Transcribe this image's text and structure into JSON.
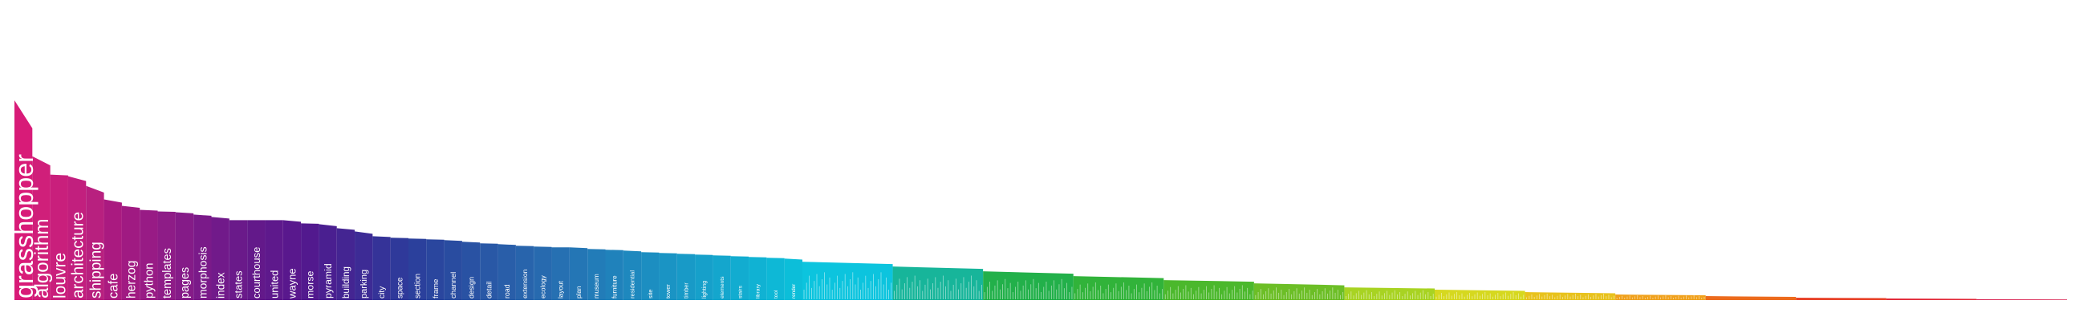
{
  "chart_data": {
    "type": "area",
    "title": "",
    "xlabel": "",
    "ylabel": "",
    "ylim": [
      0,
      250
    ],
    "grid": false,
    "legend": "none",
    "labeled_words": [
      {
        "word": "grasshopper",
        "value": 250,
        "color": "#d81b78"
      },
      {
        "word": "algorithm",
        "value": 180,
        "color": "#d01f7a"
      },
      {
        "word": "louvre",
        "value": 157,
        "color": "#c91f7c"
      },
      {
        "word": "architecture",
        "value": 155,
        "color": "#c21f7e"
      },
      {
        "word": "shipping",
        "value": 143,
        "color": "#b8207f"
      },
      {
        "word": "cafe",
        "value": 126,
        "color": "#aa1a80"
      },
      {
        "word": "herzog",
        "value": 118,
        "color": "#a01a82"
      },
      {
        "word": "python",
        "value": 113,
        "color": "#981b85"
      },
      {
        "word": "templates",
        "value": 111,
        "color": "#8e1c87"
      },
      {
        "word": "pages",
        "value": 110,
        "color": "#851b88"
      },
      {
        "word": "morphosis",
        "value": 107,
        "color": "#7a1a89"
      },
      {
        "word": "index",
        "value": 104,
        "color": "#711a8a"
      },
      {
        "word": "states",
        "value": 100,
        "color": "#6a1a8a"
      },
      {
        "word": "courthouse",
        "value": 100,
        "color": "#63198a"
      },
      {
        "word": "united",
        "value": 100,
        "color": "#5e198c"
      },
      {
        "word": "wayne",
        "value": 100,
        "color": "#59188d"
      },
      {
        "word": "morse",
        "value": 96,
        "color": "#52198e"
      },
      {
        "word": "pyramid",
        "value": 95,
        "color": "#4a1f90"
      },
      {
        "word": "building",
        "value": 90,
        "color": "#442592"
      },
      {
        "word": "parking",
        "value": 86,
        "color": "#3d2b95"
      },
      {
        "word": "city",
        "value": 80,
        "color": "#353398"
      },
      {
        "word": "space",
        "value": 78,
        "color": "#2f399a"
      },
      {
        "word": "section",
        "value": 77,
        "color": "#2b409c"
      },
      {
        "word": "frame",
        "value": 76,
        "color": "#2a469e"
      },
      {
        "word": "channel",
        "value": 75,
        "color": "#294ca0"
      },
      {
        "word": "design",
        "value": 73,
        "color": "#2952a3"
      },
      {
        "word": "detail",
        "value": 71,
        "color": "#2958a6"
      },
      {
        "word": "road",
        "value": 70,
        "color": "#295ea9"
      },
      {
        "word": "extension",
        "value": 68,
        "color": "#2864ac"
      },
      {
        "word": "ecology",
        "value": 67,
        "color": "#276aaf"
      },
      {
        "word": "layout",
        "value": 66,
        "color": "#2670b2"
      },
      {
        "word": "plan",
        "value": 66,
        "color": "#2476b5"
      },
      {
        "word": "museum",
        "value": 64,
        "color": "#227cb8"
      },
      {
        "word": "furniture",
        "value": 63,
        "color": "#2082bb"
      },
      {
        "word": "residential",
        "value": 62,
        "color": "#1e88be"
      },
      {
        "word": "site",
        "value": 60,
        "color": "#1c8ec1"
      },
      {
        "word": "tower",
        "value": 59,
        "color": "#1a94c4"
      },
      {
        "word": "timber",
        "value": 58,
        "color": "#189ac7"
      },
      {
        "word": "lighting",
        "value": 57,
        "color": "#16a0ca"
      },
      {
        "word": "elements",
        "value": 56,
        "color": "#14a6cd"
      },
      {
        "word": "stairs",
        "value": 55,
        "color": "#12acd0"
      },
      {
        "word": "library",
        "value": 54,
        "color": "#10b2d3"
      },
      {
        "word": "tool",
        "value": 53,
        "color": "#0eb8d6"
      },
      {
        "word": "render",
        "value": 52,
        "color": "#0cbed9"
      }
    ],
    "label_rows": [
      {
        "word": "grasshopper",
        "value": 250,
        "color": "#d81b78"
      },
      {
        "word": "algorithm",
        "value": 180,
        "color": "#d01f7a"
      },
      {
        "word": "louvre",
        "value": 157,
        "color": "#c91f7c"
      },
      {
        "word": "architecture",
        "value": 155,
        "color": "#c21f7e"
      },
      {
        "word": "shipping",
        "value": 143,
        "color": "#b8207f"
      },
      {
        "word": "cafe",
        "value": 126,
        "color": "#aa1a80"
      },
      {
        "word": "herzog",
        "value": 118,
        "color": "#a01a82"
      },
      {
        "word": "python",
        "value": 113,
        "color": "#981b85"
      },
      {
        "word": "templates",
        "value": 111,
        "color": "#8e1c87"
      },
      {
        "word": "pages",
        "value": 110,
        "color": "#851b88"
      },
      {
        "word": "morphosis",
        "value": 107,
        "color": "#7a1a89"
      },
      {
        "word": "index",
        "value": 104,
        "color": "#711a8a"
      },
      {
        "word": "states",
        "value": 100,
        "color": "#6a1a8a"
      },
      {
        "word": "courthouse",
        "value": 100,
        "color": "#63198a"
      },
      {
        "word": "united",
        "value": 100,
        "color": "#5e198c"
      },
      {
        "word": "wayne",
        "value": 100,
        "color": "#59188d"
      },
      {
        "word": "morse",
        "value": 96,
        "color": "#52198e"
      },
      {
        "word": "pyramid",
        "value": 95,
        "color": "#4a1f90"
      },
      {
        "word": "building",
        "value": 90,
        "color": "#442592"
      },
      {
        "word": "parking",
        "value": 86,
        "color": "#3d2b95"
      },
      {
        "word": "city",
        "value": 80,
        "color": "#353398"
      },
      {
        "word": "space",
        "value": 78,
        "color": "#2f399a"
      },
      {
        "word": "section",
        "value": 77,
        "color": "#2b409c"
      },
      {
        "word": "frame",
        "value": 76,
        "color": "#2a469e"
      },
      {
        "word": "channel",
        "value": 75,
        "color": "#294ca0"
      },
      {
        "word": "design",
        "value": 73,
        "color": "#2952a3"
      },
      {
        "word": "detail",
        "value": 71,
        "color": "#2958a6"
      },
      {
        "word": "road",
        "value": 70,
        "color": "#295ea9"
      },
      {
        "word": "extension",
        "value": 68,
        "color": "#2864ac"
      },
      {
        "word": "ecology",
        "value": 67,
        "color": "#276aaf"
      },
      {
        "word": "layout",
        "value": 66,
        "color": "#2670b2"
      },
      {
        "word": "plan",
        "value": 66,
        "color": "#2476b5"
      },
      {
        "word": "museum",
        "value": 64,
        "color": "#227cb8"
      },
      {
        "word": "furniture",
        "value": 63,
        "color": "#2082bb"
      },
      {
        "word": "residential",
        "value": 62,
        "color": "#1e88be"
      },
      {
        "word": "site",
        "value": 60,
        "color": "#1c8ec1"
      },
      {
        "word": "tower",
        "value": 59,
        "color": "#1a94c4"
      },
      {
        "word": "timber",
        "value": 58,
        "color": "#189ac7"
      },
      {
        "word": "lighting",
        "value": 57,
        "color": "#16a0ca"
      },
      {
        "word": "elements",
        "value": 56,
        "color": "#14a6cd"
      },
      {
        "word": "stairs",
        "value": 55,
        "color": "#12acd0"
      },
      {
        "word": "library",
        "value": 54,
        "color": "#10b2d3"
      },
      {
        "word": "tool",
        "value": 53,
        "color": "#0eb8d6"
      },
      {
        "word": "render",
        "value": 52,
        "color": "#0cbed9"
      }
    ],
    "tail_bands": [
      {
        "name": "cyan",
        "color": "#0cc4de",
        "value": 48
      },
      {
        "name": "teal",
        "color": "#17b59a",
        "value": 42
      },
      {
        "name": "green",
        "color": "#22b04a",
        "value": 36
      },
      {
        "name": "green-2",
        "color": "#31b33a",
        "value": 30
      },
      {
        "name": "green-3",
        "color": "#4bb82c",
        "value": 25
      },
      {
        "name": "lime",
        "color": "#6cbe26",
        "value": 21
      },
      {
        "name": "yellow-green",
        "color": "#a8d322",
        "value": 16
      },
      {
        "name": "yellow",
        "color": "#d6d81f",
        "value": 13
      },
      {
        "name": "gold",
        "color": "#e8c21d",
        "value": 10
      },
      {
        "name": "amber",
        "color": "#f0a11c",
        "value": 7
      },
      {
        "name": "orange",
        "color": "#ec6b1d",
        "value": 5
      },
      {
        "name": "red-orange",
        "color": "#e8432a",
        "value": 3
      },
      {
        "name": "red",
        "color": "#e22b3a",
        "value": 2
      },
      {
        "name": "crimson",
        "color": "#d8204f",
        "value": 1
      }
    ]
  }
}
